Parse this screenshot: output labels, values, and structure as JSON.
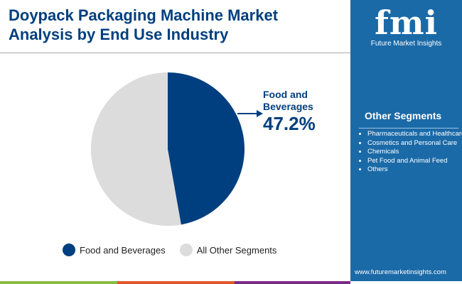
{
  "title": "Doypack Packaging Machine Market Analysis by End Use Industry",
  "brand": {
    "logo_text": "fmi",
    "name": "Future Market Insights",
    "url": "www.futuremarketinsights.com"
  },
  "other_segments": {
    "title": "Other Segments",
    "items": [
      "Pharmaceuticals and Healthcare",
      "Cosmetics and Personal Care",
      "Chemicals",
      "Pet Food and Animal Feed",
      "Others"
    ]
  },
  "chart_data": {
    "type": "pie",
    "slices": [
      {
        "name": "Food and Beverages",
        "value": 47.2,
        "color": "#003f7f"
      },
      {
        "name": "All Other Segments",
        "value": 52.8,
        "color": "#dcdcdc"
      }
    ],
    "callout": {
      "label": "Food and Beverages",
      "value": "47.2%"
    },
    "legend_position": "bottom"
  },
  "colors": {
    "sidebar": "#1b6aa8",
    "bottom_bar": [
      "#8cbb3f",
      "#e2582a",
      "#7b2a86"
    ]
  }
}
